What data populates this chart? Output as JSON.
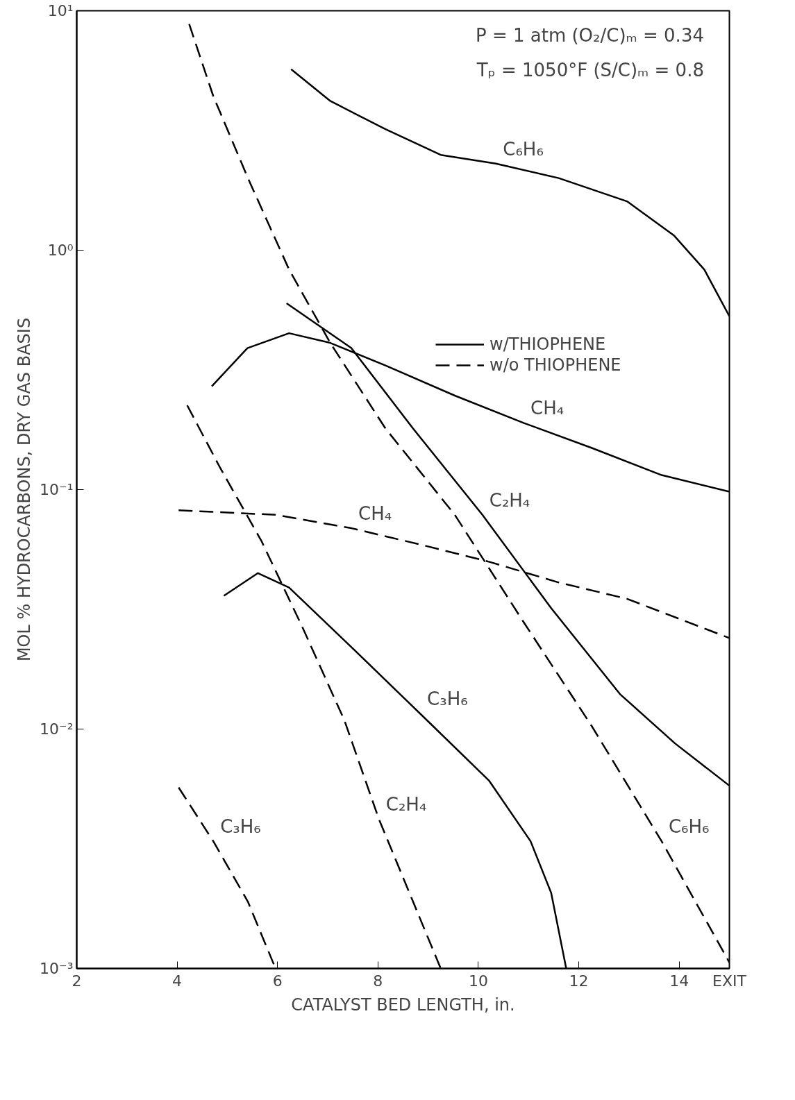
{
  "chart_data": {
    "type": "line",
    "xlabel": "CATALYST BED LENGTH, in.",
    "ylabel": "MOL % HYDROCARBONS, DRY GAS BASIS",
    "log": "y",
    "grid": false,
    "legend": "right",
    "marker": "none",
    "xlim": [
      2,
      15
    ],
    "xticks": [
      2,
      4,
      6,
      8,
      10,
      12,
      14,
      {
        "value": 15,
        "label": "EXIT"
      }
    ],
    "ylim": [
      0.001,
      10
    ],
    "yticks": [
      {
        "value": 0.001,
        "label": "10⁻³"
      },
      {
        "value": 0.01,
        "label": "10⁻²"
      },
      {
        "value": 0.1,
        "label": "10⁻¹"
      },
      {
        "value": 1,
        "label": "10⁰"
      },
      {
        "value": 10,
        "label": "10¹"
      }
    ],
    "series": [
      {
        "name": "w/THIOPHENE",
        "color": "#000000",
        "line_style": "solid",
        "x": [
          6.27,
          7.05,
          8.15,
          9.25,
          10.35,
          11.6,
          12.96,
          13.9,
          14.5,
          15
        ],
        "values": [
          5.7,
          4.2,
          3.2,
          2.5,
          2.3,
          2.0,
          1.6,
          1.15,
          0.83,
          0.53
        ]
      },
      {
        "color": "#000000",
        "line_style": "solid",
        "x": [
          4.69,
          5.4,
          6.23,
          7.05,
          8.15,
          9.53,
          10.9,
          12.27,
          13.65,
          15
        ],
        "values": [
          0.27,
          0.39,
          0.45,
          0.41,
          0.33,
          0.247,
          0.19,
          0.149,
          0.115,
          0.098
        ]
      },
      {
        "color": "#000000",
        "line_style": "solid",
        "x": [
          6.18,
          7.47,
          8.7,
          10.08,
          11.45,
          12.82,
          13.92,
          15
        ],
        "values": [
          0.6,
          0.39,
          0.18,
          0.0785,
          0.032,
          0.014,
          0.0087,
          0.0058
        ]
      },
      {
        "color": "#000000",
        "line_style": "solid",
        "x": [
          4.93,
          5.61,
          6.23,
          7.47,
          8.84,
          10.21,
          11.04,
          11.45,
          11.75
        ],
        "values": [
          0.036,
          0.0448,
          0.039,
          0.022,
          0.0116,
          0.0061,
          0.0034,
          0.00207,
          0.001
        ]
      },
      {
        "name": "w/o THIOPHENE",
        "color": "#000000",
        "line_style": "dashed",
        "x": [
          4.24,
          4.72,
          5.41,
          6.23,
          7.05,
          8.15,
          9.53,
          10.9,
          12.27,
          13.65,
          15
        ],
        "values": [
          8.8,
          4.4,
          2.0,
          0.83,
          0.41,
          0.18,
          0.0785,
          0.028,
          0.0102,
          0.0034,
          0.00106
        ]
      },
      {
        "color": "#000000",
        "line_style": "dashed",
        "x": [
          4.03,
          5.96,
          7.47,
          8.84,
          10.21,
          11.59,
          12.96,
          15
        ],
        "values": [
          0.082,
          0.0785,
          0.069,
          0.059,
          0.05,
          0.041,
          0.035,
          0.024
        ]
      },
      {
        "color": "#000000",
        "line_style": "dashed",
        "x": [
          4.2,
          4.86,
          5.68,
          6.5,
          7.33,
          8.02,
          8.7,
          9.25
        ],
        "values": [
          0.225,
          0.123,
          0.061,
          0.0265,
          0.0109,
          0.0042,
          0.0019,
          0.001
        ]
      },
      {
        "color": "#000000",
        "line_style": "dashed",
        "x": [
          4.03,
          4.72,
          5.41,
          5.96
        ],
        "values": [
          0.0057,
          0.0034,
          0.0019,
          0.001
        ]
      }
    ],
    "annotations": [
      "P = 1 atm   (O₂/C)ₘ = 0.34",
      "Tₚ = 1050°F   (S/C)ₘ = 0.8",
      {
        "text": "C₆H₆",
        "x": 10.35,
        "y": 2.3
      },
      {
        "text": "CH₄",
        "x": 10.9,
        "y": 0.19
      },
      {
        "text": "C₂H₄",
        "x": 10.08,
        "y": 0.0785
      },
      {
        "text": "C₃H₆",
        "x": 8.84,
        "y": 0.0116
      },
      {
        "text": "CH₄",
        "x": 7.47,
        "y": 0.069
      },
      {
        "text": "C₆H₆",
        "x": 13.65,
        "y": 0.0034
      },
      {
        "text": "C₂H₄",
        "x": 8.02,
        "y": 0.0042
      },
      {
        "text": "C₃H₆",
        "x": 4.72,
        "y": 0.0034
      }
    ]
  }
}
